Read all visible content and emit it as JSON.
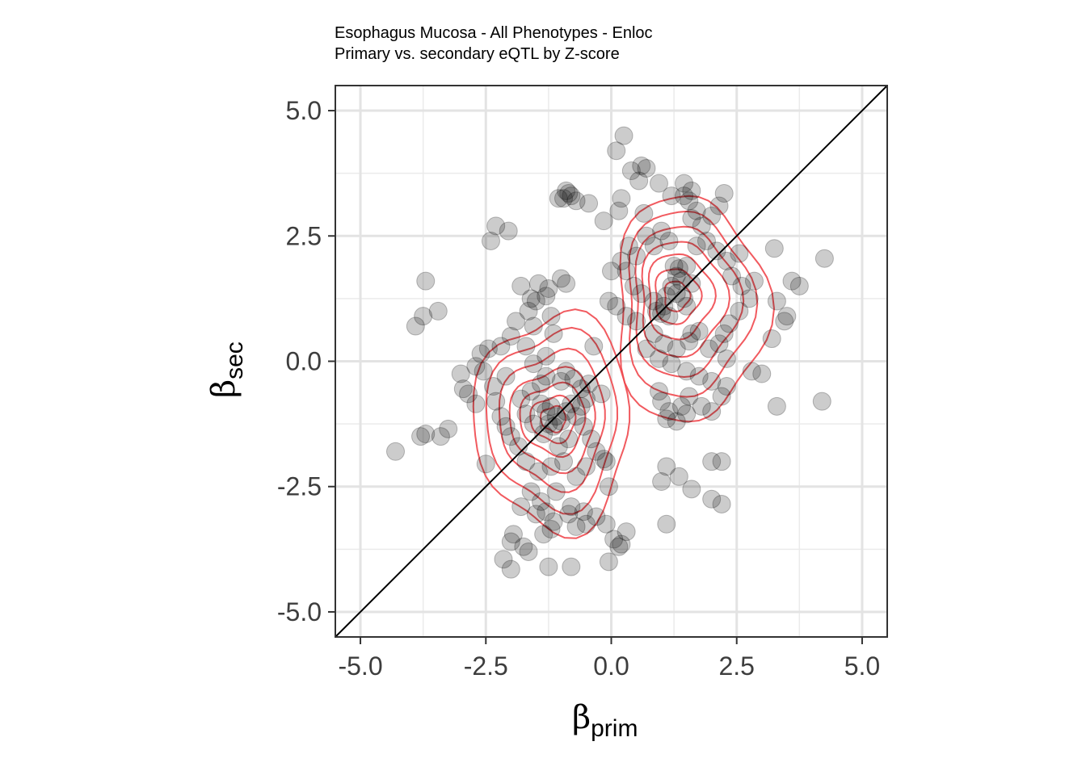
{
  "chart_data": {
    "type": "scatter",
    "title": "Esophagus Mucosa - All Phenotypes - Enloc",
    "subtitle": "Primary vs. secondary eQTL by Z-score",
    "xlabel": {
      "symbol": "β",
      "subscript": "prim"
    },
    "ylabel": {
      "symbol": "β",
      "subscript": "sec"
    },
    "xlim": [
      -5.5,
      5.5
    ],
    "ylim": [
      -5.5,
      5.5
    ],
    "xticks": [
      -5.0,
      -2.5,
      0.0,
      2.5,
      5.0
    ],
    "yticks": [
      -5.0,
      -2.5,
      0.0,
      2.5,
      5.0
    ],
    "xtick_labels": [
      "-5.0",
      "-2.5",
      "0.0",
      "2.5",
      "5.0"
    ],
    "ytick_labels": [
      "-5.0",
      "-2.5",
      "0.0",
      "2.5",
      "5.0"
    ],
    "grid": true,
    "reference_line": {
      "slope": 1,
      "intercept": 0,
      "color": "#000000"
    },
    "density_contours": {
      "color": "#f0484e",
      "shown": true
    },
    "point_color": "#000000",
    "point_alpha": 0.2,
    "points": [
      [
        0.25,
        4.5
      ],
      [
        0.1,
        4.2
      ],
      [
        0.4,
        3.8
      ],
      [
        0.6,
        3.9
      ],
      [
        0.7,
        3.85
      ],
      [
        0.55,
        3.6
      ],
      [
        -0.9,
        3.4
      ],
      [
        -0.85,
        3.35
      ],
      [
        -0.8,
        3.3
      ],
      [
        -0.95,
        3.25
      ],
      [
        -0.7,
        3.2
      ],
      [
        -0.45,
        3.15
      ],
      [
        -1.05,
        3.25
      ],
      [
        0.2,
        3.25
      ],
      [
        0.15,
        3.0
      ],
      [
        -0.15,
        2.8
      ],
      [
        0.65,
        2.95
      ],
      [
        0.95,
        3.55
      ],
      [
        1.2,
        3.3
      ],
      [
        1.45,
        3.55
      ],
      [
        1.6,
        3.4
      ],
      [
        1.45,
        3.3
      ],
      [
        1.55,
        3.2
      ],
      [
        1.7,
        3.0
      ],
      [
        1.6,
        2.85
      ],
      [
        1.8,
        2.7
      ],
      [
        2.0,
        2.9
      ],
      [
        2.25,
        3.35
      ],
      [
        2.15,
        3.1
      ],
      [
        -2.3,
        2.7
      ],
      [
        -2.4,
        2.4
      ],
      [
        -2.05,
        2.6
      ],
      [
        -3.7,
        1.6
      ],
      [
        -3.75,
        0.9
      ],
      [
        -3.45,
        1.0
      ],
      [
        -3.9,
        0.7
      ],
      [
        4.25,
        2.05
      ],
      [
        3.25,
        2.25
      ],
      [
        3.6,
        1.6
      ],
      [
        3.75,
        1.5
      ],
      [
        3.3,
        1.2
      ],
      [
        3.45,
        0.8
      ],
      [
        3.5,
        0.9
      ],
      [
        3.2,
        0.45
      ],
      [
        4.2,
        -0.8
      ],
      [
        1.25,
        1.9
      ],
      [
        1.35,
        1.85
      ],
      [
        1.5,
        1.9
      ],
      [
        1.3,
        1.7
      ],
      [
        1.4,
        1.6
      ],
      [
        1.6,
        1.55
      ],
      [
        1.2,
        1.5
      ],
      [
        1.1,
        1.3
      ],
      [
        1.3,
        1.35
      ],
      [
        1.45,
        1.25
      ],
      [
        1.5,
        1.1
      ],
      [
        1.05,
        1.1
      ],
      [
        0.9,
        1.0
      ],
      [
        1.0,
        0.95
      ],
      [
        1.15,
        0.9
      ],
      [
        0.85,
        1.2
      ],
      [
        0.6,
        1.35
      ],
      [
        0.45,
        1.5
      ],
      [
        0.3,
        1.8
      ],
      [
        0.0,
        1.8
      ],
      [
        0.2,
        2.0
      ],
      [
        0.35,
        2.3
      ],
      [
        0.5,
        2.1
      ],
      [
        0.7,
        2.5
      ],
      [
        0.85,
        2.3
      ],
      [
        1.0,
        2.6
      ],
      [
        1.15,
        2.4
      ],
      [
        1.7,
        2.3
      ],
      [
        1.9,
        2.4
      ],
      [
        2.1,
        2.2
      ],
      [
        2.3,
        2.0
      ],
      [
        2.55,
        2.15
      ],
      [
        2.4,
        1.7
      ],
      [
        2.6,
        1.5
      ],
      [
        2.75,
        1.25
      ],
      [
        2.85,
        1.6
      ],
      [
        2.55,
        1.0
      ],
      [
        2.35,
        0.75
      ],
      [
        2.25,
        0.55
      ],
      [
        2.15,
        0.35
      ],
      [
        2.3,
        0.05
      ],
      [
        1.95,
        0.25
      ],
      [
        1.75,
        0.6
      ],
      [
        1.6,
        0.55
      ],
      [
        1.55,
        0.4
      ],
      [
        1.3,
        0.25
      ],
      [
        1.05,
        0.35
      ],
      [
        0.85,
        0.55
      ],
      [
        0.5,
        0.8
      ],
      [
        0.3,
        0.9
      ],
      [
        0.1,
        1.1
      ],
      [
        -0.05,
        1.2
      ],
      [
        0.7,
        0.25
      ],
      [
        0.95,
        0.05
      ],
      [
        1.2,
        -0.05
      ],
      [
        1.5,
        -0.2
      ],
      [
        1.75,
        -0.3
      ],
      [
        2.0,
        -0.4
      ],
      [
        2.3,
        -0.5
      ],
      [
        2.8,
        -0.2
      ],
      [
        3.0,
        -0.25
      ],
      [
        3.3,
        -0.9
      ],
      [
        1.0,
        -0.8
      ],
      [
        1.15,
        -1.0
      ],
      [
        1.4,
        -0.9
      ],
      [
        1.5,
        -1.05
      ],
      [
        1.3,
        -1.2
      ],
      [
        1.1,
        -1.15
      ],
      [
        0.95,
        -0.6
      ],
      [
        1.55,
        -0.7
      ],
      [
        1.8,
        -0.9
      ],
      [
        2.0,
        -1.0
      ],
      [
        2.2,
        -0.7
      ],
      [
        1.1,
        -2.1
      ],
      [
        1.0,
        -2.4
      ],
      [
        1.35,
        -2.3
      ],
      [
        1.6,
        -2.55
      ],
      [
        2.0,
        -2.0
      ],
      [
        2.2,
        -2.0
      ],
      [
        2.0,
        -2.75
      ],
      [
        2.2,
        -2.85
      ],
      [
        1.1,
        -3.25
      ],
      [
        -1.2,
        -0.9
      ],
      [
        -1.1,
        -1.1
      ],
      [
        -1.0,
        -1.2
      ],
      [
        -1.15,
        -1.3
      ],
      [
        -1.3,
        -1.0
      ],
      [
        -0.9,
        -1.0
      ],
      [
        -1.4,
        -0.85
      ],
      [
        -1.25,
        -1.25
      ],
      [
        -0.8,
        -0.85
      ],
      [
        -0.7,
        -1.1
      ],
      [
        -0.6,
        -0.9
      ],
      [
        -0.5,
        -0.75
      ],
      [
        -0.55,
        -1.3
      ],
      [
        -0.85,
        -1.55
      ],
      [
        -1.05,
        -1.7
      ],
      [
        -1.35,
        -1.45
      ],
      [
        -1.55,
        -1.25
      ],
      [
        -1.7,
        -1.05
      ],
      [
        -1.8,
        -0.75
      ],
      [
        -1.6,
        -0.6
      ],
      [
        -1.4,
        -0.45
      ],
      [
        -1.3,
        -0.3
      ],
      [
        -1.0,
        -0.4
      ],
      [
        -0.75,
        -0.35
      ],
      [
        -0.9,
        -0.2
      ],
      [
        -0.2,
        -0.65
      ],
      [
        -0.4,
        -1.55
      ],
      [
        -0.3,
        -1.8
      ],
      [
        -0.15,
        -1.95
      ],
      [
        -0.1,
        -2.0
      ],
      [
        -0.5,
        -2.1
      ],
      [
        -0.7,
        -2.3
      ],
      [
        -0.95,
        -2.0
      ],
      [
        -1.2,
        -2.1
      ],
      [
        -1.45,
        -2.2
      ],
      [
        -1.7,
        -2.0
      ],
      [
        -1.85,
        -1.7
      ],
      [
        -2.0,
        -1.5
      ],
      [
        -2.1,
        -1.3
      ],
      [
        -2.2,
        -1.1
      ],
      [
        -2.3,
        -0.8
      ],
      [
        -2.35,
        -0.5
      ],
      [
        -2.1,
        -0.3
      ],
      [
        -2.55,
        -0.2
      ],
      [
        -2.7,
        -0.1
      ],
      [
        -2.6,
        0.15
      ],
      [
        -2.45,
        0.25
      ],
      [
        -2.2,
        0.3
      ],
      [
        -2.0,
        0.5
      ],
      [
        -1.9,
        0.8
      ],
      [
        -1.65,
        1.0
      ],
      [
        -1.5,
        1.2
      ],
      [
        -1.3,
        1.3
      ],
      [
        -1.6,
        1.25
      ],
      [
        -1.45,
        1.55
      ],
      [
        -1.8,
        1.5
      ],
      [
        -1.25,
        1.45
      ],
      [
        -1.0,
        1.65
      ],
      [
        -0.9,
        1.55
      ],
      [
        -1.2,
        0.9
      ],
      [
        -1.15,
        0.55
      ],
      [
        -1.55,
        0.7
      ],
      [
        -1.3,
        0.1
      ],
      [
        -1.7,
        0.3
      ],
      [
        -3.0,
        -0.25
      ],
      [
        -2.95,
        -0.55
      ],
      [
        -2.85,
        -0.65
      ],
      [
        -2.7,
        -0.85
      ],
      [
        -2.5,
        -2.05
      ],
      [
        -3.7,
        -1.45
      ],
      [
        -3.8,
        -1.5
      ],
      [
        -3.4,
        -1.5
      ],
      [
        -3.25,
        -1.35
      ],
      [
        -4.3,
        -1.8
      ],
      [
        -1.6,
        -2.6
      ],
      [
        -1.4,
        -2.8
      ],
      [
        -1.8,
        -2.9
      ],
      [
        -1.3,
        -3.0
      ],
      [
        -1.15,
        -3.2
      ],
      [
        -1.2,
        -3.35
      ],
      [
        -0.85,
        -3.05
      ],
      [
        -0.7,
        -3.3
      ],
      [
        -0.55,
        -3.0
      ],
      [
        -0.3,
        -3.1
      ],
      [
        -0.5,
        -3.25
      ],
      [
        -1.5,
        -3.05
      ],
      [
        -1.95,
        -3.45
      ],
      [
        -2.0,
        -3.6
      ],
      [
        -1.75,
        -3.7
      ],
      [
        -1.65,
        -3.8
      ],
      [
        -1.35,
        -3.45
      ],
      [
        -0.1,
        -3.25
      ],
      [
        -0.05,
        -2.5
      ],
      [
        -0.8,
        -2.9
      ],
      [
        -1.1,
        -2.6
      ],
      [
        0.3,
        -3.4
      ],
      [
        0.05,
        -3.55
      ],
      [
        0.15,
        -3.7
      ],
      [
        -2.15,
        -3.95
      ],
      [
        -2.0,
        -4.15
      ],
      [
        -1.25,
        -4.1
      ],
      [
        -0.8,
        -4.1
      ],
      [
        -0.05,
        -4.0
      ],
      [
        0.2,
        -3.65
      ],
      [
        -0.6,
        -0.55
      ],
      [
        -0.45,
        -0.45
      ],
      [
        -1.55,
        -0.05
      ],
      [
        -0.35,
        0.3
      ]
    ],
    "contour_levels": [
      {
        "cx": -1.15,
        "cy": -1.15,
        "rx": 0.25,
        "ry": 0.25
      },
      {
        "cx": -1.15,
        "cy": -1.15,
        "rx": 0.45,
        "ry": 0.45
      },
      {
        "cx": -1.15,
        "cy": -1.15,
        "rx": 0.65,
        "ry": 0.7
      },
      {
        "cx": -1.15,
        "cy": -1.15,
        "rx": 0.85,
        "ry": 1.0
      },
      {
        "cx": -1.15,
        "cy": -1.15,
        "rx": 1.05,
        "ry": 1.35
      },
      {
        "cx": -1.15,
        "cy": -1.15,
        "rx": 1.3,
        "ry": 1.75
      },
      {
        "cx": -1.15,
        "cy": -1.2,
        "rx": 1.55,
        "ry": 2.15
      },
      {
        "cx": 1.3,
        "cy": 1.3,
        "rx": 0.25,
        "ry": 0.3
      },
      {
        "cx": 1.3,
        "cy": 1.3,
        "rx": 0.45,
        "ry": 0.55
      },
      {
        "cx": 1.35,
        "cy": 1.3,
        "rx": 0.65,
        "ry": 0.85
      },
      {
        "cx": 1.4,
        "cy": 1.25,
        "rx": 0.85,
        "ry": 1.15
      },
      {
        "cx": 1.45,
        "cy": 1.2,
        "rx": 1.05,
        "ry": 1.5
      },
      {
        "cx": 1.5,
        "cy": 1.15,
        "rx": 1.25,
        "ry": 1.85
      },
      {
        "cx": 1.55,
        "cy": 1.05,
        "rx": 1.5,
        "ry": 2.25
      }
    ]
  }
}
